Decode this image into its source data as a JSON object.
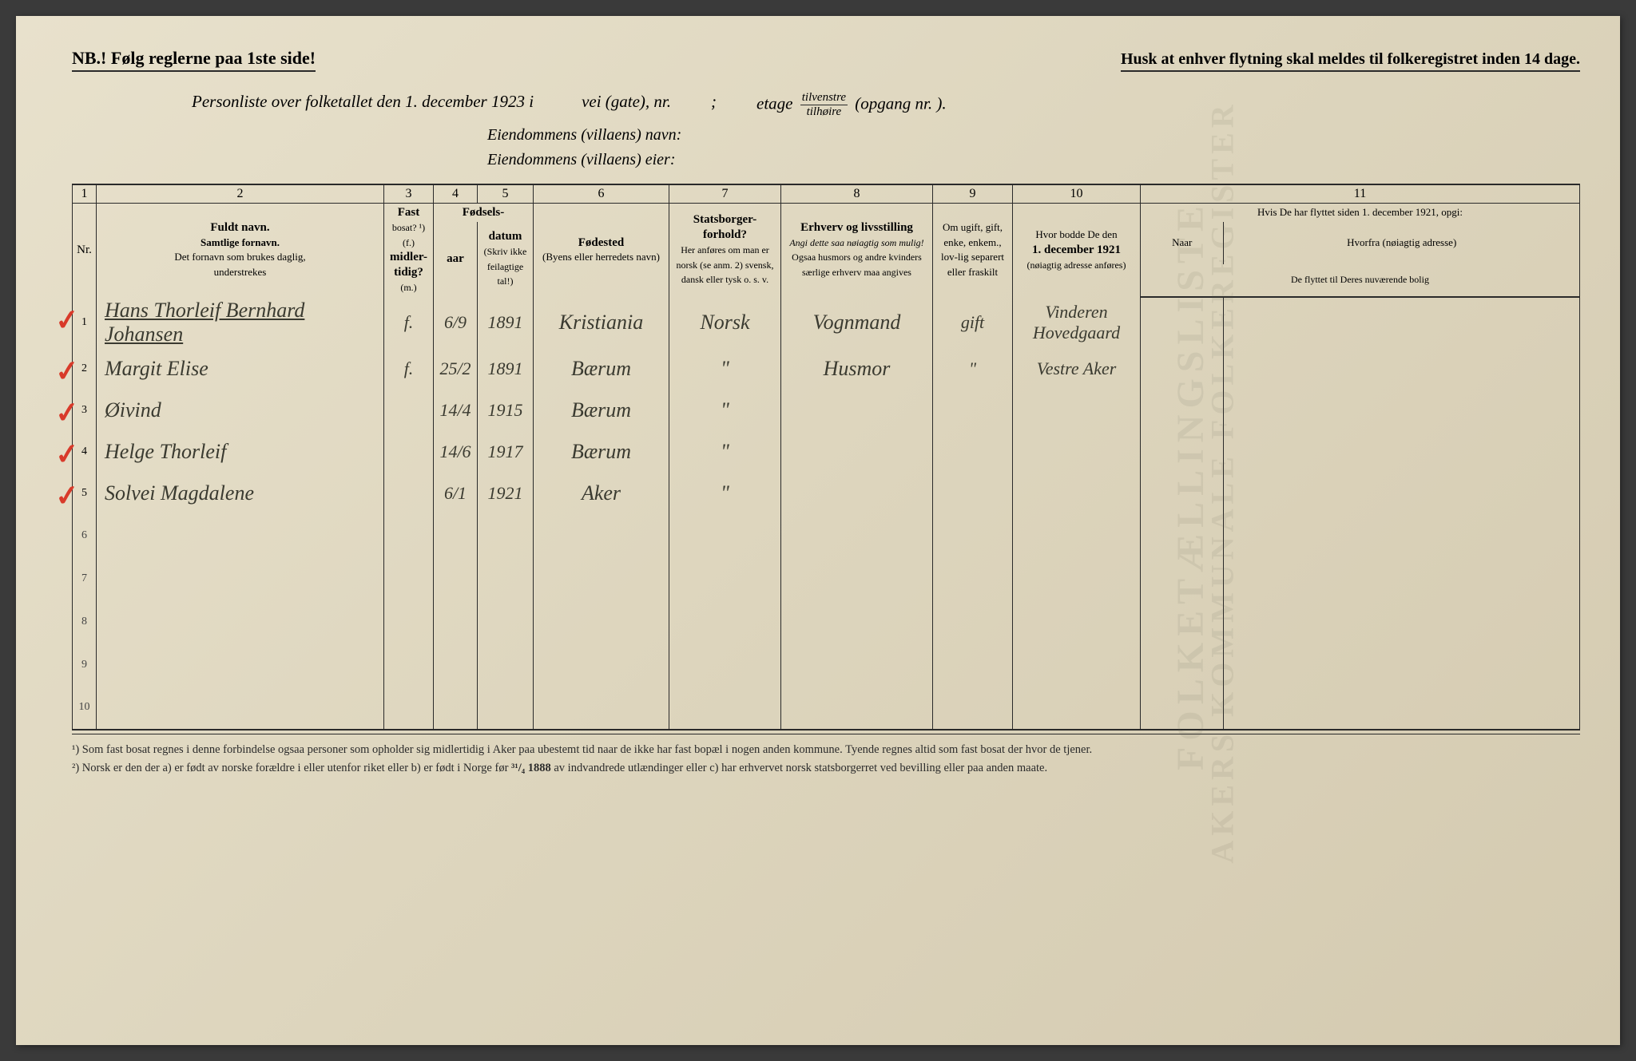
{
  "header": {
    "nb": "NB.! Følg reglerne paa 1ste side!",
    "husk": "Husk at enhver flytning skal meldes til folkeregistret inden 14 dage."
  },
  "subtitle": {
    "main": "Personliste over folketallet den 1. december 1923 i",
    "vei": "vei (gate), nr.",
    "semicolon": ";",
    "etage": "etage",
    "frac_top": "tilvenstre",
    "frac_bot": "tilhøire",
    "opgang": "(opgang nr.      ).",
    "prop_name": "Eiendommens (villaens) navn:",
    "prop_owner": "Eiendommens (villaens) eier:"
  },
  "columns": {
    "numbers": [
      "1",
      "2",
      "3",
      "4",
      "5",
      "6",
      "7",
      "8",
      "9",
      "10",
      "11"
    ],
    "nr": "Nr.",
    "c2_title": "Fuldt navn.",
    "c2_sub1": "Samtlige fornavn.",
    "c2_sub2": "Det fornavn som brukes daglig,",
    "c2_sub3": "understrekes",
    "c3_l1": "Fast",
    "c3_l2": "bosat? ¹)",
    "c3_l3": "(f.)",
    "c3_l4": "midler-",
    "c3_l5": "tidig?",
    "c3_l6": "(m.)",
    "c45_title": "Fødsels-",
    "c4": "aar",
    "c5": "datum",
    "c45_note": "(Skriv ikke feilagtige tal!)",
    "c6_title": "Fødested",
    "c6_sub": "(Byens eller herredets navn)",
    "c7_title": "Statsborger-forhold?",
    "c7_sub": "Her anføres om man er norsk (se anm. 2) svensk, dansk eller tysk o. s. v.",
    "c8_title": "Erhverv og livsstilling",
    "c8_sub1": "Angi dette saa nøiagtig som mulig!",
    "c8_sub2": "Ogsaa husmors og andre kvinders særlige erhverv maa angives",
    "c9": "Om ugift, gift, enke, enkem., lov-lig separert eller fraskilt",
    "c10_title": "Hvor bodde De den",
    "c10_date": "1. december 1921",
    "c10_sub": "(nøiagtig adresse anføres)",
    "c11_title": "Hvis De har flyttet siden 1. december 1921, opgi:",
    "c11a": "Naar",
    "c11b": "Hvorfra (nøiagtig adresse)",
    "c11c": "De flyttet til Deres nuværende bolig"
  },
  "rows": [
    {
      "nr": "1",
      "check": true,
      "name": "Hans Thorleif Bernhard Johansen",
      "name_underline": true,
      "bosat": "f.",
      "datum": "6/9",
      "aar": "1891",
      "fodested": "Kristiania",
      "statsb": "Norsk",
      "erhverv": "Vognmand",
      "gift": "gift",
      "bodde": "Vinderen Hovedgaard"
    },
    {
      "nr": "2",
      "check": true,
      "name": "Margit Elise",
      "bosat": "f.",
      "datum": "25/2",
      "aar": "1891",
      "fodested": "Bærum",
      "statsb": "\"",
      "erhverv": "Husmor",
      "gift": "\"",
      "bodde": "Vestre Aker"
    },
    {
      "nr": "3",
      "check": true,
      "name": "Øivind",
      "bosat": "",
      "datum": "14/4",
      "aar": "1915",
      "fodested": "Bærum",
      "statsb": "\"",
      "erhverv": "",
      "gift": "",
      "bodde": ""
    },
    {
      "nr": "4",
      "check": true,
      "name": "Helge Thorleif",
      "bosat": "",
      "datum": "14/6",
      "aar": "1917",
      "fodested": "Bærum",
      "statsb": "\"",
      "erhverv": "",
      "gift": "",
      "bodde": ""
    },
    {
      "nr": "5",
      "check": true,
      "name": "Solvei Magdalene",
      "bosat": "",
      "datum": "6/1",
      "aar": "1921",
      "fodested": "Aker",
      "statsb": "\"",
      "erhverv": "",
      "gift": "",
      "bodde": ""
    }
  ],
  "empty_rows": [
    "6",
    "7",
    "8",
    "9",
    "10"
  ],
  "footnotes": {
    "f1": "¹) Som fast bosat regnes i denne forbindelse ogsaa personer som opholder sig midlertidig i Aker paa ubestemt tid naar de ikke har fast bopæl i nogen anden kommune.  Tyende regnes altid som fast bosat der hvor de tjener.",
    "f2_a": "²) Norsk er den der a) er født av norske forældre i eller utenfor riket eller b) er født i Norge før ",
    "f2_date": "³¹/₄ 1888",
    "f2_b": " av indvandrede utlændinger eller c) har erhvervet norsk statsborgerret ved bevilling eller paa anden maate."
  },
  "watermarks": {
    "w1": "FOLKETÆLLINGSLISTE",
    "w2": "AKERS KOMMUNALE FOLKEREGISTER"
  },
  "colors": {
    "ink": "#2a2a2a",
    "handwriting": "#3a3a30",
    "red": "#d83a2a",
    "paper_light": "#e8e1cc",
    "paper_dark": "#d4cab0"
  }
}
